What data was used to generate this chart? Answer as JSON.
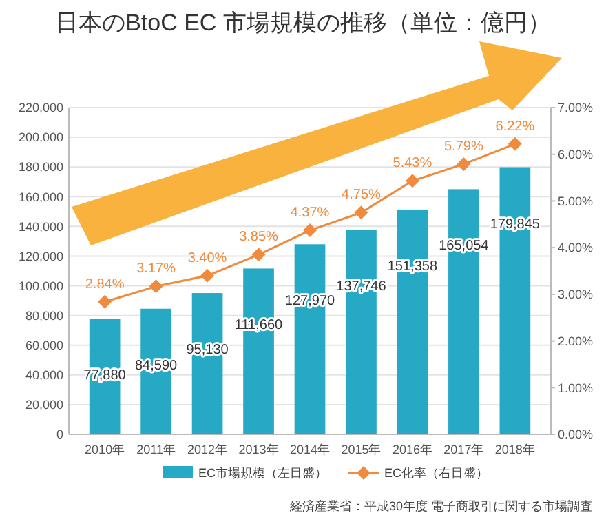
{
  "chart_data": {
    "type": "bar",
    "title": "日本のBtoC EC 市場規模の推移（単位：億円）",
    "categories": [
      "2010年",
      "2011年",
      "2012年",
      "2013年",
      "2014年",
      "2015年",
      "2016年",
      "2017年",
      "2018年"
    ],
    "series": [
      {
        "name": "EC市場規模（左目盛）",
        "color": "#26a9c4",
        "values": [
          77880,
          84590,
          95130,
          111660,
          127970,
          137746,
          151358,
          165054,
          179845
        ],
        "value_labels": [
          "77,880",
          "84,590",
          "95,130",
          "111,660",
          "127,970",
          "137,746",
          "151,358",
          "165,054",
          "179,845"
        ]
      },
      {
        "name": "EC化率（右目盛）",
        "type": "line",
        "axis": "y2",
        "color": "#f08a3c",
        "marker": "diamond",
        "values": [
          2.84,
          3.17,
          3.4,
          3.85,
          4.37,
          4.75,
          5.43,
          5.79,
          6.22
        ],
        "value_labels": [
          "2.84%",
          "3.17%",
          "3.40%",
          "3.85%",
          "4.37%",
          "4.75%",
          "5.43%",
          "5.79%",
          "6.22%"
        ]
      }
    ],
    "ylim": [
      0,
      220000
    ],
    "yticks": [
      {
        "value": 0,
        "label": "0"
      },
      {
        "value": 20000,
        "label": "20,000"
      },
      {
        "value": 40000,
        "label": "40,000"
      },
      {
        "value": 60000,
        "label": "60,000"
      },
      {
        "value": 80000,
        "label": "80,000"
      },
      {
        "value": 100000,
        "label": "100,000"
      },
      {
        "value": 120000,
        "label": "120,000"
      },
      {
        "value": 140000,
        "label": "140,000"
      },
      {
        "value": 160000,
        "label": "160,000"
      },
      {
        "value": 180000,
        "label": "180,000"
      },
      {
        "value": 200000,
        "label": "200,000"
      },
      {
        "value": 220000,
        "label": "220,000"
      }
    ],
    "y2lim": [
      0,
      7
    ],
    "y2ticks": [
      {
        "value": 0,
        "label": "0.00%"
      },
      {
        "value": 1,
        "label": "1.00%"
      },
      {
        "value": 2,
        "label": "2.00%"
      },
      {
        "value": 3,
        "label": "3.00%"
      },
      {
        "value": 4,
        "label": "4.00%"
      },
      {
        "value": 5,
        "label": "5.00%"
      },
      {
        "value": 6,
        "label": "6.00%"
      },
      {
        "value": 7,
        "label": "7.00%"
      }
    ],
    "grid": "y",
    "legend": "bottom",
    "annotations": [
      "経済産業省：平成30年度 電子商取引に関する市場調査"
    ]
  }
}
